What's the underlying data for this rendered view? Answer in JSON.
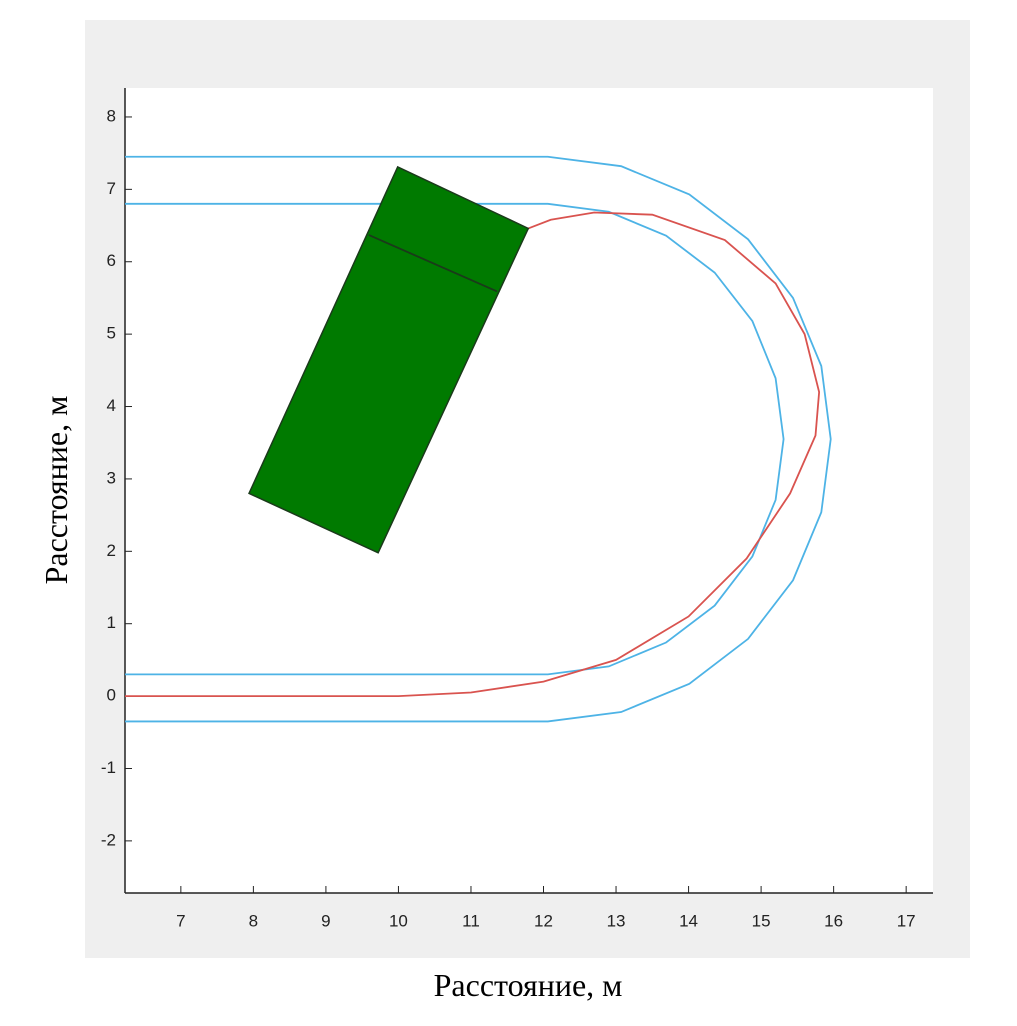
{
  "chart_data": {
    "type": "line",
    "xlabel": "Расстояние, м",
    "ylabel": "Расстояние,  м",
    "xlim": [
      6.23,
      17.37
    ],
    "ylim": [
      -2.72,
      8.4
    ],
    "xticks": [
      7,
      8,
      9,
      10,
      11,
      12,
      13,
      14,
      15,
      16,
      17
    ],
    "yticks": [
      -2,
      -1,
      0,
      1,
      2,
      3,
      4,
      5,
      6,
      7,
      8
    ],
    "grid": false,
    "series": [
      {
        "color": "#4db3e6",
        "x": [
          6.23,
          12.06,
          13.07,
          14.01,
          14.82,
          15.44,
          15.83,
          15.96,
          15.83,
          15.44,
          14.82,
          14.01,
          13.07,
          12.06,
          6.23
        ],
        "y": [
          7.45,
          7.45,
          7.32,
          6.93,
          6.31,
          5.5,
          4.56,
          3.55,
          2.54,
          1.6,
          0.79,
          0.17,
          -0.22,
          -0.35,
          -0.35
        ]
      },
      {
        "color": "#4db3e6",
        "x": [
          6.23,
          12.06,
          12.9,
          13.69,
          14.36,
          14.88,
          15.2,
          15.31,
          15.2,
          14.88,
          14.36,
          13.69,
          12.9,
          12.06,
          6.23
        ],
        "y": [
          6.8,
          6.8,
          6.69,
          6.36,
          5.85,
          5.18,
          4.39,
          3.55,
          2.71,
          1.93,
          1.25,
          0.74,
          0.41,
          0.3,
          0.3
        ]
      },
      {
        "color": "#d9534f",
        "x": [
          6.23,
          10,
          11,
          12,
          13,
          14,
          14.8,
          15.4,
          15.75,
          15.8,
          15.6,
          15.2,
          14.5,
          13.5,
          12.7,
          12.1,
          11.79
        ],
        "y": [
          0,
          0,
          0.05,
          0.2,
          0.5,
          1.1,
          1.9,
          2.8,
          3.6,
          4.2,
          5.0,
          5.7,
          6.3,
          6.65,
          6.68,
          6.58,
          6.46
        ]
      },
      {
        "color": "#1a3a1a",
        "fill": "#007a00",
        "x": [
          9.99,
          11.79,
          9.72,
          7.94
        ],
        "y": [
          7.31,
          6.46,
          1.98,
          2.8
        ]
      },
      {
        "color": "#1a3a1a",
        "x": [
          9.59,
          11.36
        ],
        "y": [
          6.37,
          5.59
        ]
      }
    ]
  }
}
